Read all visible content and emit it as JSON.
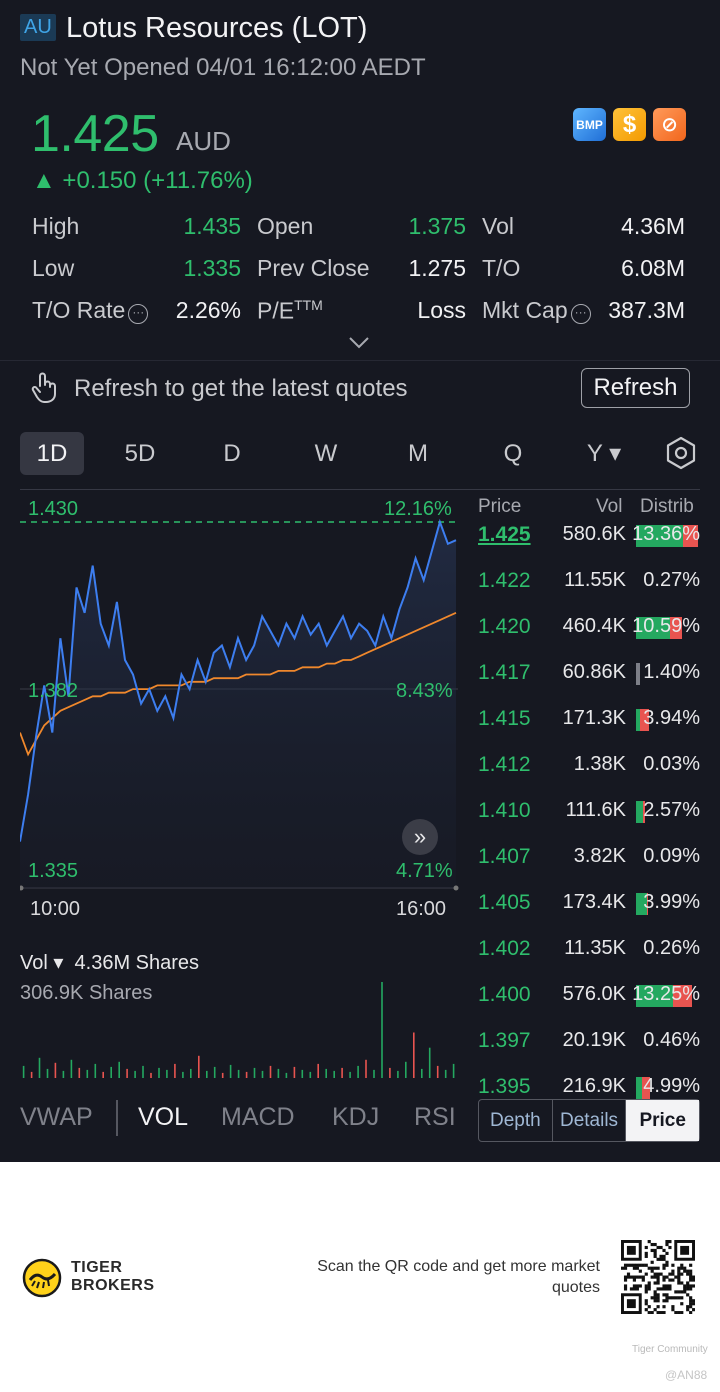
{
  "header": {
    "market": "AU",
    "title": "Lotus Resources (LOT)",
    "status": "Not Yet Opened 04/01 16:12:00 AEDT"
  },
  "quote": {
    "price": "1.425",
    "currency": "AUD",
    "change": "▲ +0.150 (+11.76%)",
    "badges": [
      "BMP",
      "$",
      "⊘"
    ],
    "up_color": "#2fbe6d",
    "down_color": "#e85450"
  },
  "stats": [
    {
      "label": "High",
      "value": "1.435"
    },
    {
      "label": "Open",
      "value": "1.375"
    },
    {
      "label": "Vol",
      "value": "4.36M"
    },
    {
      "label": "Low",
      "value": "1.335"
    },
    {
      "label": "Prev Close",
      "value": "1.275"
    },
    {
      "label": "T/O",
      "value": "6.08M"
    },
    {
      "label": "T/O Rate",
      "value": "2.26%"
    },
    {
      "label": "P/E",
      "sup": "TTM",
      "value": "Loss"
    },
    {
      "label": "Mkt Cap",
      "value": "387.3M"
    }
  ],
  "refresh": {
    "message": "Refresh to get the latest quotes",
    "button": "Refresh"
  },
  "tabs": [
    "1D",
    "5D",
    "D",
    "W",
    "M",
    "Q",
    "Y ▾"
  ],
  "active_tab": "1D",
  "chart": {
    "top_left": "1.430",
    "top_right": "12.16%",
    "mid_left": "1.382",
    "mid_right": "8.43%",
    "bottom_left": "1.335",
    "bottom_right": "4.71%",
    "time_start": "10:00",
    "time_end": "16:00"
  },
  "chart_data": {
    "type": "line",
    "series": [
      {
        "name": "price",
        "color": "#3d7ef0",
        "values": [
          1.342,
          1.355,
          1.371,
          1.385,
          1.372,
          1.398,
          1.382,
          1.412,
          1.405,
          1.418,
          1.402,
          1.396,
          1.408,
          1.392,
          1.388,
          1.38,
          1.384,
          1.378,
          1.382,
          1.376,
          1.388,
          1.384,
          1.392,
          1.386,
          1.394,
          1.396,
          1.39,
          1.398,
          1.392,
          1.396,
          1.404,
          1.4,
          1.396,
          1.402,
          1.398,
          1.404,
          1.399,
          1.402,
          1.396,
          1.4,
          1.404,
          1.398,
          1.402,
          1.4,
          1.396,
          1.404,
          1.398,
          1.406,
          1.412,
          1.42,
          1.414,
          1.422,
          1.43,
          1.424,
          1.425
        ]
      },
      {
        "name": "avg",
        "color": "#f0882c",
        "values": [
          1.372,
          1.366,
          1.37,
          1.374,
          1.376,
          1.378,
          1.379,
          1.38,
          1.381,
          1.382,
          1.382,
          1.383,
          1.383,
          1.383,
          1.384,
          1.384,
          1.384,
          1.385,
          1.385,
          1.385,
          1.385,
          1.386,
          1.386,
          1.386,
          1.387,
          1.387,
          1.387,
          1.387,
          1.388,
          1.388,
          1.388,
          1.388,
          1.389,
          1.389,
          1.389,
          1.39,
          1.39,
          1.39,
          1.391,
          1.391,
          1.392,
          1.392,
          1.393,
          1.394,
          1.395,
          1.396,
          1.397,
          1.398,
          1.399,
          1.4,
          1.401,
          1.402,
          1.403,
          1.404,
          1.405
        ]
      }
    ],
    "ylim": [
      1.335,
      1.43
    ],
    "reference": 1.43,
    "volume": [
      12,
      6,
      20,
      9,
      15,
      7,
      18,
      10,
      8,
      14,
      6,
      11,
      16,
      9,
      7,
      12,
      5,
      10,
      8,
      14,
      6,
      9,
      22,
      7,
      11,
      5,
      13,
      8,
      6,
      10,
      7,
      12,
      9,
      5,
      11,
      8,
      6,
      14,
      9,
      7,
      10,
      6,
      12,
      18,
      8,
      95,
      10,
      7,
      16,
      45,
      9,
      30,
      12,
      8,
      14
    ]
  },
  "volume_panel": {
    "label": "Vol ▾",
    "total": "4.36M Shares",
    "current": "306.9K Shares"
  },
  "indicators": [
    "VWAP",
    "VOL",
    "MACD",
    "KDJ",
    "RSI"
  ],
  "active_indicator": "VOL",
  "orderbook": {
    "headers": [
      "Price",
      "Vol",
      "Distrib"
    ],
    "rows": [
      {
        "price": "1.425",
        "vol": "580.6K",
        "pct": "13.36%",
        "g": 0.75,
        "r": 0.25,
        "bold": true
      },
      {
        "price": "1.422",
        "vol": "11.55K",
        "pct": "0.27%",
        "g": 0,
        "r": 0
      },
      {
        "price": "1.420",
        "vol": "460.4K",
        "pct": "10.59%",
        "g": 0.55,
        "r": 0.2
      },
      {
        "price": "1.417",
        "vol": "60.86K",
        "pct": "1.40%",
        "g": 0,
        "r": 0,
        "grey": true
      },
      {
        "price": "1.415",
        "vol": "171.3K",
        "pct": "3.94%",
        "g": 0.05,
        "r": 0.15
      },
      {
        "price": "1.412",
        "vol": "1.38K",
        "pct": "0.03%",
        "g": 0,
        "r": 0
      },
      {
        "price": "1.410",
        "vol": "111.6K",
        "pct": "2.57%",
        "g": 0.12,
        "r": 0.02
      },
      {
        "price": "1.407",
        "vol": "3.82K",
        "pct": "0.09%",
        "g": 0,
        "r": 0
      },
      {
        "price": "1.405",
        "vol": "173.4K",
        "pct": "3.99%",
        "g": 0.18,
        "r": 0.02
      },
      {
        "price": "1.402",
        "vol": "11.35K",
        "pct": "0.26%",
        "g": 0,
        "r": 0
      },
      {
        "price": "1.400",
        "vol": "576.0K",
        "pct": "13.25%",
        "g": 0.6,
        "r": 0.3
      },
      {
        "price": "1.397",
        "vol": "20.19K",
        "pct": "0.46%",
        "g": 0,
        "r": 0
      },
      {
        "price": "1.395",
        "vol": "216.9K",
        "pct": "4.99%",
        "g": 0.1,
        "r": 0.12
      }
    ]
  },
  "orderbook_tabs": [
    "Depth",
    "Details",
    "Price"
  ],
  "footer": {
    "brand_line1": "TIGER",
    "brand_line2": "BROKERS",
    "scan_text": "Scan the QR code and get more market quotes",
    "watermark": "Tiger Community",
    "user": "@AN88"
  }
}
